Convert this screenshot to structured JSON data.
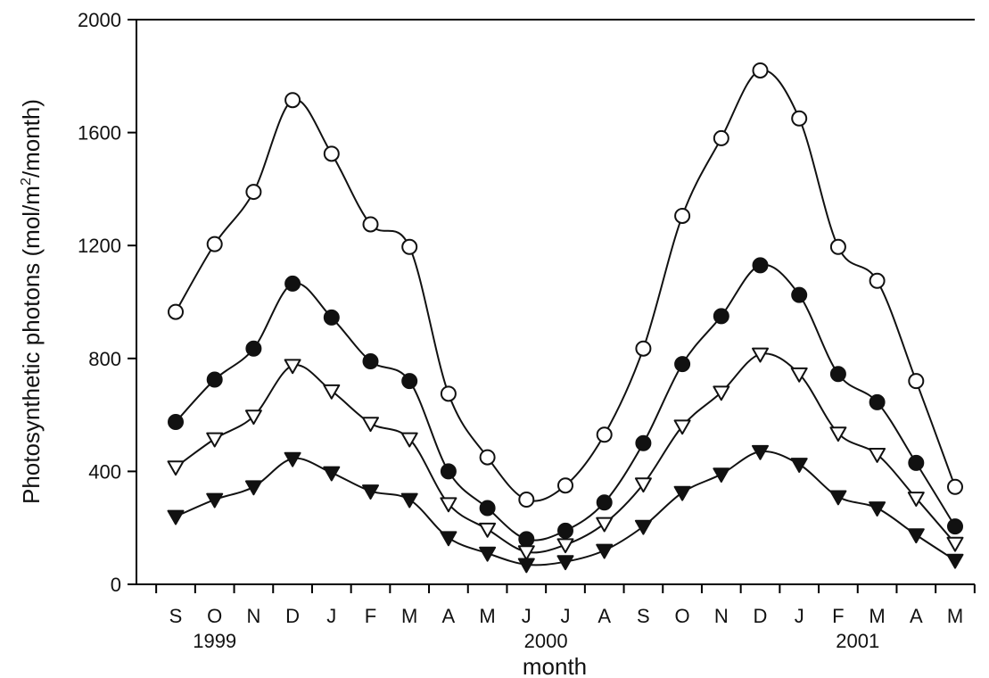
{
  "chart_data": {
    "type": "line",
    "title": "",
    "xlabel": "month",
    "ylabel": "Photosynthetic photons (mol/m2/month)",
    "ylabel_parts": [
      "Photosynthetic photons (mol/m",
      "2",
      "/month)"
    ],
    "categories": [
      "S",
      "O",
      "N",
      "D",
      "J",
      "F",
      "M",
      "A",
      "M",
      "J",
      "J",
      "A",
      "S",
      "O",
      "N",
      "D",
      "J",
      "F",
      "M",
      "A",
      "M"
    ],
    "year_labels": [
      {
        "text": "1999",
        "index": 1
      },
      {
        "text": "2000",
        "index": 9.5
      },
      {
        "text": "2001",
        "index": 17.5
      }
    ],
    "ylim": [
      0,
      2000
    ],
    "yticks": [
      0,
      400,
      800,
      1200,
      1600,
      2000
    ],
    "grid": false,
    "series": [
      {
        "marker": "circle-open",
        "values": [
          965,
          1205,
          1390,
          1715,
          1525,
          1275,
          1195,
          675,
          450,
          300,
          350,
          530,
          835,
          1305,
          1580,
          1820,
          1650,
          1195,
          1075,
          720,
          345
        ]
      },
      {
        "marker": "circle-filled",
        "values": [
          575,
          725,
          835,
          1065,
          945,
          790,
          720,
          400,
          270,
          160,
          190,
          290,
          500,
          780,
          950,
          1130,
          1025,
          745,
          645,
          430,
          205
        ]
      },
      {
        "marker": "triangle-down-open",
        "values": [
          415,
          515,
          595,
          775,
          685,
          570,
          515,
          285,
          195,
          115,
          140,
          215,
          355,
          560,
          680,
          815,
          745,
          535,
          460,
          305,
          145
        ]
      },
      {
        "marker": "triangle-down-filled",
        "values": [
          240,
          300,
          345,
          445,
          395,
          330,
          300,
          165,
          110,
          70,
          80,
          120,
          205,
          325,
          390,
          470,
          425,
          310,
          270,
          175,
          85
        ]
      }
    ]
  }
}
